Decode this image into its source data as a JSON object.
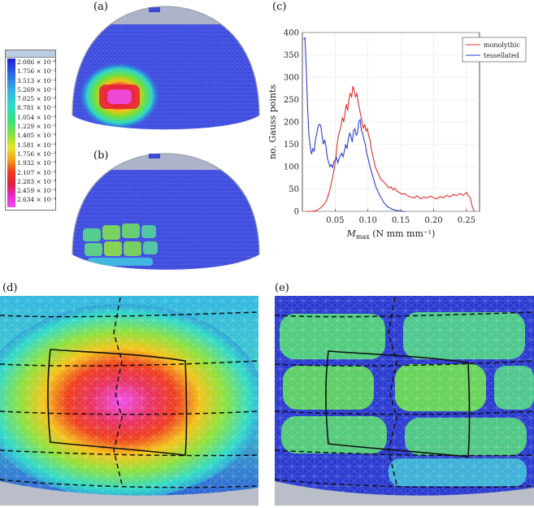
{
  "panel_labels": [
    "(a)",
    "(b)",
    "(c)",
    "(d)",
    "(e)"
  ],
  "legend": {
    "values": [
      "2.086 × 10⁻⁶",
      "1.756 × 10⁻²",
      "3.513 × 10⁻²",
      "5.269 × 10⁻²",
      "7.025 × 10⁻²",
      "8.781 × 10⁻²",
      "1.054 × 10⁻¹",
      "1.229 × 10⁻¹",
      "1.405 × 10⁻¹",
      "1.581 × 10⁻¹",
      "1.756 × 10⁻¹",
      "1.932 × 10⁻¹",
      "2.107 × 10⁻¹",
      "2.283 × 10⁻¹",
      "2.459 × 10⁻¹",
      "2.634 × 10⁻¹"
    ]
  },
  "chart_data": {
    "type": "line",
    "title": "",
    "xlabel": "M_max (N mm mm⁻¹)",
    "xlabel_main": "M",
    "xlabel_sub": "max",
    "xlabel_rest": " (N mm mm⁻¹)",
    "ylabel": "no. Gauss points",
    "xlim": [
      0,
      0.27
    ],
    "ylim": [
      0,
      400
    ],
    "xticks": [
      "0.05",
      "0.10",
      "0.15",
      "0.20",
      "0.25"
    ],
    "xtick_values": [
      0.05,
      0.1,
      0.15,
      0.2,
      0.25
    ],
    "yticks": [
      "0",
      "50",
      "100",
      "150",
      "200",
      "250",
      "300",
      "350",
      "400"
    ],
    "ytick_values": [
      0,
      50,
      100,
      150,
      200,
      250,
      300,
      350,
      400
    ],
    "grid": true,
    "legend_position": "top-right",
    "series": [
      {
        "name": "monolythic",
        "color": "#e0312b",
        "x": [
          0.005,
          0.015,
          0.022,
          0.028,
          0.033,
          0.037,
          0.04,
          0.043,
          0.046,
          0.049,
          0.051,
          0.053,
          0.055,
          0.057,
          0.059,
          0.061,
          0.063,
          0.065,
          0.067,
          0.069,
          0.071,
          0.073,
          0.075,
          0.077,
          0.079,
          0.081,
          0.083,
          0.085,
          0.087,
          0.089,
          0.091,
          0.093,
          0.095,
          0.097,
          0.099,
          0.101,
          0.103,
          0.105,
          0.108,
          0.111,
          0.114,
          0.117,
          0.12,
          0.123,
          0.126,
          0.129,
          0.132,
          0.135,
          0.138,
          0.141,
          0.144,
          0.148,
          0.152,
          0.156,
          0.16,
          0.165,
          0.17,
          0.175,
          0.18,
          0.185,
          0.19,
          0.195,
          0.2,
          0.205,
          0.21,
          0.215,
          0.22,
          0.225,
          0.23,
          0.235,
          0.24,
          0.245,
          0.25,
          0.253,
          0.256,
          0.259,
          0.262
        ],
        "values": [
          0,
          0,
          2,
          8,
          15,
          25,
          38,
          55,
          75,
          100,
          120,
          150,
          170,
          180,
          190,
          210,
          200,
          220,
          240,
          225,
          250,
          265,
          255,
          280,
          270,
          255,
          265,
          245,
          230,
          215,
          200,
          185,
          195,
          180,
          185,
          170,
          160,
          140,
          120,
          100,
          90,
          80,
          70,
          68,
          62,
          58,
          52,
          55,
          48,
          52,
          45,
          42,
          38,
          40,
          35,
          32,
          30,
          35,
          28,
          32,
          30,
          34,
          30,
          28,
          33,
          30,
          36,
          32,
          38,
          35,
          40,
          36,
          42,
          35,
          30,
          10,
          0
        ]
      },
      {
        "name": "tessellated",
        "color": "#2b3fd0",
        "x": [
          0.002,
          0.004,
          0.006,
          0.008,
          0.01,
          0.012,
          0.014,
          0.016,
          0.018,
          0.02,
          0.022,
          0.024,
          0.026,
          0.028,
          0.03,
          0.032,
          0.034,
          0.036,
          0.038,
          0.04,
          0.042,
          0.044,
          0.046,
          0.048,
          0.05,
          0.052,
          0.054,
          0.056,
          0.058,
          0.06,
          0.062,
          0.064,
          0.066,
          0.068,
          0.07,
          0.072,
          0.074,
          0.076,
          0.078,
          0.08,
          0.082,
          0.084,
          0.086,
          0.088,
          0.09,
          0.092,
          0.094,
          0.096,
          0.098,
          0.1,
          0.103,
          0.106,
          0.109,
          0.112,
          0.115,
          0.118,
          0.121,
          0.124,
          0.127,
          0.13,
          0.133,
          0.136,
          0.139,
          0.142,
          0.145,
          0.148,
          0.151,
          0.154,
          0.157
        ],
        "values": [
          385,
          388,
          320,
          230,
          170,
          145,
          128,
          140,
          135,
          160,
          175,
          190,
          195,
          192,
          170,
          150,
          160,
          145,
          120,
          110,
          100,
          105,
          98,
          110,
          115,
          120,
          108,
          118,
          125,
          130,
          122,
          135,
          150,
          140,
          160,
          175,
          168,
          155,
          180,
          185,
          170,
          175,
          200,
          205,
          180,
          175,
          160,
          150,
          130,
          120,
          100,
          85,
          70,
          55,
          45,
          35,
          28,
          20,
          15,
          10,
          8,
          5,
          4,
          2,
          2,
          1,
          0,
          0,
          0
        ]
      }
    ]
  }
}
